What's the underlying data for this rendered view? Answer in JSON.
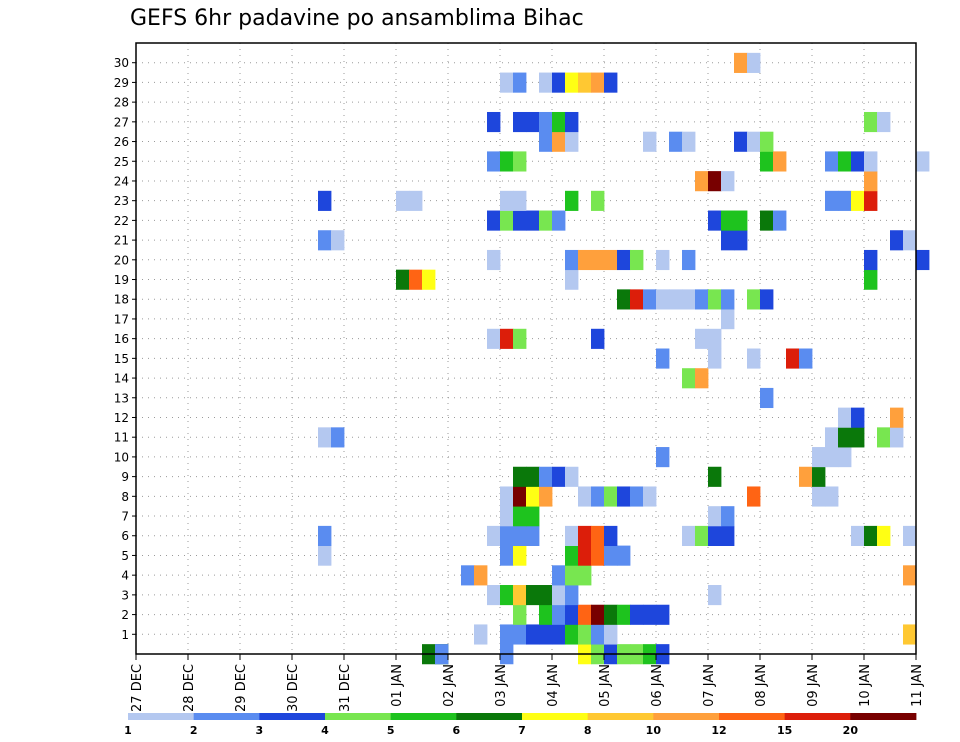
{
  "chart_data": {
    "type": "heatmap",
    "title": "GEFS 6hr padavine po ansamblima Bihac",
    "xlabel": "",
    "ylabel": "",
    "x_ticks": [
      "27 DEC",
      "28 DEC",
      "29 DEC",
      "30 DEC",
      "31 DEC",
      "01 JAN",
      "02 JAN",
      "03 JAN",
      "04 JAN",
      "05 JAN",
      "06 JAN",
      "07 JAN",
      "08 JAN",
      "09 JAN",
      "10 JAN",
      "11 JAN"
    ],
    "y_ticks": [
      "1",
      "2",
      "3",
      "4",
      "5",
      "6",
      "7",
      "8",
      "9",
      "10",
      "11",
      "12",
      "13",
      "14",
      "15",
      "16",
      "17",
      "18",
      "19",
      "20",
      "21",
      "22",
      "23",
      "24",
      "25",
      "26",
      "27",
      "28",
      "29",
      "30"
    ],
    "x_range": [
      0,
      60
    ],
    "y_range": [
      0,
      30
    ],
    "time_step": "6hr",
    "grid": true,
    "legend": {
      "placement": "bottom",
      "labels": [
        "1",
        "2",
        "3",
        "4",
        "5",
        "6",
        "7",
        "8",
        "10",
        "12",
        "15",
        "20"
      ],
      "colors": [
        "#b4c8f0",
        "#5a8cf0",
        "#1e46dc",
        "#78e650",
        "#1ec31e",
        "#0a780a",
        "#ffff14",
        "#ffc832",
        "#ffa03c",
        "#ff6414",
        "#dc1e0a",
        "#780000"
      ]
    },
    "cells": [
      [
        22,
        0,
        5
      ],
      [
        23,
        0,
        5
      ],
      [
        23,
        0,
        1
      ],
      [
        28,
        0,
        1
      ],
      [
        34,
        0,
        6
      ],
      [
        35,
        0,
        3
      ],
      [
        36,
        0,
        2
      ],
      [
        37,
        0,
        3
      ],
      [
        38,
        0,
        3
      ],
      [
        39,
        0,
        4
      ],
      [
        40,
        0,
        2
      ],
      [
        26,
        1,
        0
      ],
      [
        28,
        1,
        1
      ],
      [
        29,
        1,
        1
      ],
      [
        30,
        1,
        2
      ],
      [
        31,
        1,
        2
      ],
      [
        32,
        1,
        2
      ],
      [
        33,
        1,
        4
      ],
      [
        34,
        1,
        3
      ],
      [
        35,
        1,
        1
      ],
      [
        36,
        1,
        0
      ],
      [
        59,
        1,
        7
      ],
      [
        29,
        2,
        3
      ],
      [
        31,
        2,
        4
      ],
      [
        32,
        2,
        1
      ],
      [
        33,
        2,
        2
      ],
      [
        34,
        2,
        9
      ],
      [
        35,
        2,
        11
      ],
      [
        36,
        2,
        5
      ],
      [
        37,
        2,
        4
      ],
      [
        38,
        2,
        2
      ],
      [
        39,
        2,
        2
      ],
      [
        40,
        2,
        2
      ],
      [
        27,
        3,
        0
      ],
      [
        28,
        3,
        4
      ],
      [
        29,
        3,
        7
      ],
      [
        30,
        3,
        5
      ],
      [
        31,
        3,
        5
      ],
      [
        32,
        3,
        0
      ],
      [
        33,
        3,
        1
      ],
      [
        44,
        3,
        0
      ],
      [
        25,
        4,
        1
      ],
      [
        26,
        4,
        8
      ],
      [
        32,
        4,
        1
      ],
      [
        33,
        4,
        3
      ],
      [
        34,
        4,
        3
      ],
      [
        59,
        4,
        8
      ],
      [
        28,
        5,
        1
      ],
      [
        29,
        5,
        6
      ],
      [
        33,
        5,
        4
      ],
      [
        34,
        5,
        10
      ],
      [
        35,
        5,
        9
      ],
      [
        36,
        5,
        1
      ],
      [
        37,
        5,
        1
      ],
      [
        14,
        5,
        0
      ],
      [
        14,
        6,
        1
      ],
      [
        27,
        6,
        0
      ],
      [
        28,
        6,
        1
      ],
      [
        29,
        6,
        1
      ],
      [
        30,
        6,
        1
      ],
      [
        33,
        6,
        0
      ],
      [
        34,
        6,
        10
      ],
      [
        35,
        6,
        9
      ],
      [
        36,
        6,
        2
      ],
      [
        42,
        6,
        0
      ],
      [
        43,
        6,
        3
      ],
      [
        44,
        6,
        2
      ],
      [
        45,
        6,
        2
      ],
      [
        55,
        6,
        0
      ],
      [
        56,
        6,
        5
      ],
      [
        57,
        6,
        6
      ],
      [
        59,
        6,
        0
      ],
      [
        28,
        7,
        0
      ],
      [
        29,
        7,
        4
      ],
      [
        30,
        7,
        4
      ],
      [
        44,
        7,
        0
      ],
      [
        45,
        7,
        1
      ],
      [
        28,
        8,
        0
      ],
      [
        29,
        8,
        11
      ],
      [
        30,
        8,
        6
      ],
      [
        31,
        8,
        8
      ],
      [
        34,
        8,
        0
      ],
      [
        35,
        8,
        1
      ],
      [
        36,
        8,
        3
      ],
      [
        37,
        8,
        2
      ],
      [
        38,
        8,
        1
      ],
      [
        39,
        8,
        0
      ],
      [
        47,
        8,
        9
      ],
      [
        52,
        8,
        0
      ],
      [
        53,
        8,
        0
      ],
      [
        29,
        9,
        5
      ],
      [
        30,
        9,
        5
      ],
      [
        31,
        9,
        1
      ],
      [
        32,
        9,
        2
      ],
      [
        33,
        9,
        0
      ],
      [
        44,
        9,
        5
      ],
      [
        51,
        9,
        8
      ],
      [
        52,
        9,
        5
      ],
      [
        40,
        10,
        1
      ],
      [
        52,
        10,
        0
      ],
      [
        53,
        10,
        0
      ],
      [
        54,
        10,
        0
      ],
      [
        14,
        11,
        0
      ],
      [
        15,
        11,
        1
      ],
      [
        53,
        11,
        0
      ],
      [
        54,
        11,
        5
      ],
      [
        55,
        11,
        5
      ],
      [
        57,
        11,
        3
      ],
      [
        58,
        11,
        0
      ],
      [
        54,
        12,
        0
      ],
      [
        55,
        12,
        2
      ],
      [
        58,
        12,
        8
      ],
      [
        48,
        13,
        1
      ],
      [
        42,
        14,
        3
      ],
      [
        43,
        14,
        8
      ],
      [
        40,
        15,
        1
      ],
      [
        44,
        15,
        0
      ],
      [
        47,
        15,
        0
      ],
      [
        50,
        15,
        10
      ],
      [
        51,
        15,
        1
      ],
      [
        27,
        16,
        0
      ],
      [
        28,
        16,
        10
      ],
      [
        29,
        16,
        3
      ],
      [
        35,
        16,
        2
      ],
      [
        43,
        16,
        0
      ],
      [
        44,
        16,
        0
      ],
      [
        45,
        17,
        0
      ],
      [
        37,
        18,
        5
      ],
      [
        38,
        18,
        10
      ],
      [
        39,
        18,
        1
      ],
      [
        40,
        18,
        0
      ],
      [
        41,
        18,
        0
      ],
      [
        42,
        18,
        0
      ],
      [
        43,
        18,
        1
      ],
      [
        44,
        18,
        3
      ],
      [
        45,
        18,
        1
      ],
      [
        47,
        18,
        3
      ],
      [
        48,
        18,
        2
      ],
      [
        20,
        19,
        5
      ],
      [
        21,
        19,
        9
      ],
      [
        22,
        19,
        6
      ],
      [
        33,
        19,
        0
      ],
      [
        56,
        19,
        4
      ],
      [
        27,
        20,
        0
      ],
      [
        33,
        20,
        1
      ],
      [
        34,
        20,
        8
      ],
      [
        35,
        20,
        8
      ],
      [
        36,
        20,
        8
      ],
      [
        37,
        20,
        2
      ],
      [
        38,
        20,
        3
      ],
      [
        40,
        20,
        0
      ],
      [
        42,
        20,
        1
      ],
      [
        56,
        20,
        2
      ],
      [
        60,
        20,
        2
      ],
      [
        14,
        21,
        1
      ],
      [
        15,
        21,
        0
      ],
      [
        45,
        21,
        2
      ],
      [
        46,
        21,
        2
      ],
      [
        58,
        21,
        2
      ],
      [
        59,
        21,
        0
      ],
      [
        27,
        22,
        2
      ],
      [
        28,
        22,
        3
      ],
      [
        29,
        22,
        2
      ],
      [
        30,
        22,
        2
      ],
      [
        31,
        22,
        3
      ],
      [
        32,
        22,
        1
      ],
      [
        44,
        22,
        2
      ],
      [
        45,
        22,
        4
      ],
      [
        46,
        22,
        4
      ],
      [
        48,
        22,
        5
      ],
      [
        49,
        22,
        1
      ],
      [
        14,
        23,
        2
      ],
      [
        20,
        23,
        0
      ],
      [
        21,
        23,
        0
      ],
      [
        28,
        23,
        0
      ],
      [
        29,
        23,
        0
      ],
      [
        33,
        23,
        4
      ],
      [
        35,
        23,
        3
      ],
      [
        53,
        23,
        1
      ],
      [
        54,
        23,
        1
      ],
      [
        55,
        23,
        6
      ],
      [
        56,
        23,
        10
      ],
      [
        43,
        24,
        8
      ],
      [
        44,
        24,
        11
      ],
      [
        45,
        24,
        0
      ],
      [
        56,
        24,
        8
      ],
      [
        27,
        25,
        1
      ],
      [
        28,
        25,
        4
      ],
      [
        29,
        25,
        3
      ],
      [
        48,
        25,
        4
      ],
      [
        49,
        25,
        8
      ],
      [
        53,
        25,
        1
      ],
      [
        54,
        25,
        4
      ],
      [
        55,
        25,
        2
      ],
      [
        56,
        25,
        0
      ],
      [
        60,
        25,
        0
      ],
      [
        31,
        26,
        1
      ],
      [
        32,
        26,
        8
      ],
      [
        33,
        26,
        0
      ],
      [
        39,
        26,
        0
      ],
      [
        41,
        26,
        1
      ],
      [
        42,
        26,
        0
      ],
      [
        46,
        26,
        2
      ],
      [
        47,
        26,
        0
      ],
      [
        48,
        26,
        3
      ],
      [
        27,
        27,
        2
      ],
      [
        29,
        27,
        2
      ],
      [
        30,
        27,
        2
      ],
      [
        31,
        27,
        1
      ],
      [
        32,
        27,
        4
      ],
      [
        33,
        27,
        2
      ],
      [
        56,
        27,
        3
      ],
      [
        57,
        27,
        0
      ],
      [
        28,
        29,
        0
      ],
      [
        29,
        29,
        1
      ],
      [
        31,
        29,
        0
      ],
      [
        32,
        29,
        2
      ],
      [
        33,
        29,
        6
      ],
      [
        34,
        29,
        7
      ],
      [
        35,
        29,
        8
      ],
      [
        36,
        29,
        2
      ],
      [
        46,
        30,
        8
      ],
      [
        47,
        30,
        0
      ]
    ]
  }
}
